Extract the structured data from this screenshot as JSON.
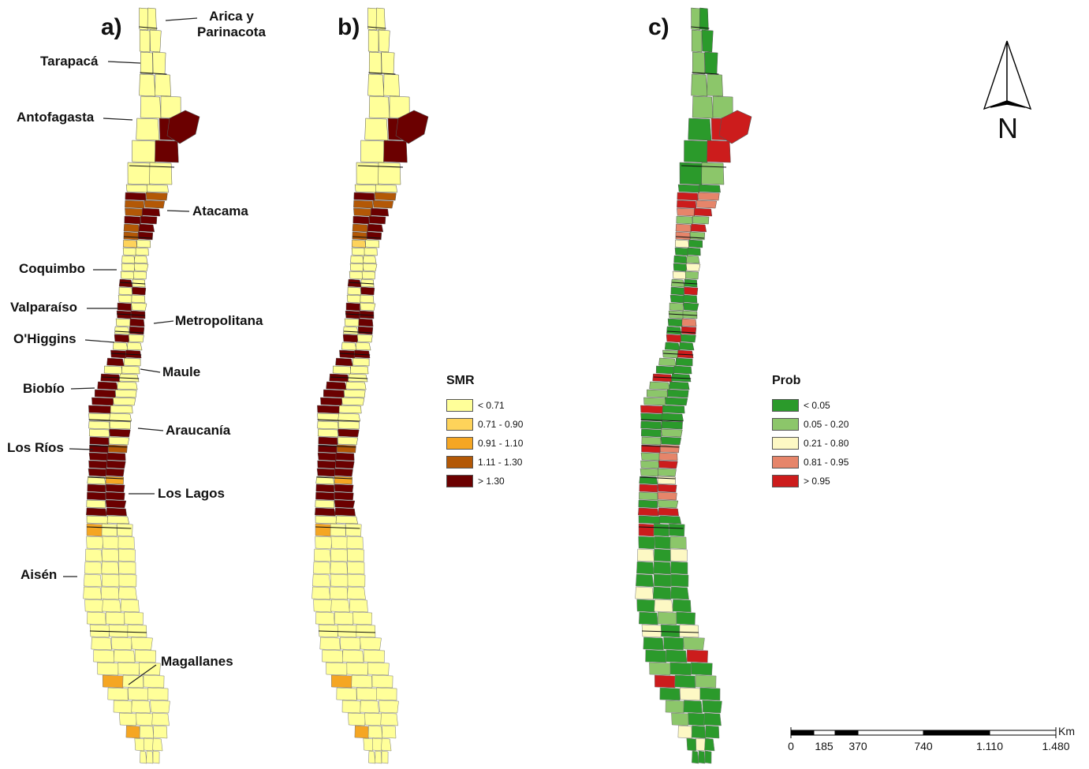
{
  "panels": [
    {
      "letter": "a)",
      "colors": [
        "#ffff99",
        "#fed35a",
        "#f5a623",
        "#b35806",
        "#6b0000"
      ]
    },
    {
      "letter": "b)",
      "colors": [
        "#ffff99",
        "#fed35a",
        "#f5a623",
        "#b35806",
        "#6b0000"
      ]
    },
    {
      "letter": "c)",
      "colors": [
        "#2b9a2b",
        "#8cc66a",
        "#fdf8c4",
        "#e6856a",
        "#cc1c1c"
      ]
    }
  ],
  "regions": [
    {
      "name": "Arica y Parinacota"
    },
    {
      "name": "Tarapacá"
    },
    {
      "name": "Antofagasta"
    },
    {
      "name": "Atacama"
    },
    {
      "name": "Coquimbo"
    },
    {
      "name": "Valparaíso"
    },
    {
      "name": "Metropolitana"
    },
    {
      "name": "O'Higgins"
    },
    {
      "name": "Maule"
    },
    {
      "name": "Biobío"
    },
    {
      "name": "Araucanía"
    },
    {
      "name": "Los Ríos"
    },
    {
      "name": "Los Lagos"
    },
    {
      "name": "Aisén"
    },
    {
      "name": "Magallanes"
    }
  ],
  "region_label_line1": "Arica y",
  "region_label_line2": "Parinacota",
  "legend_smr": {
    "title": "SMR",
    "items": [
      {
        "label": "< 0.71",
        "color": "#ffff99"
      },
      {
        "label": "0.71 - 0.90",
        "color": "#fed35a"
      },
      {
        "label": "0.91 - 1.10",
        "color": "#f5a623"
      },
      {
        "label": "1.11 - 1.30",
        "color": "#b35806"
      },
      {
        "label": "> 1.30",
        "color": "#6b0000"
      }
    ]
  },
  "legend_prob": {
    "title": "Prob",
    "items": [
      {
        "label": "< 0.05",
        "color": "#2b9a2b"
      },
      {
        "label": "0.05 - 0.20",
        "color": "#8cc66a"
      },
      {
        "label": "0.21 - 0.80",
        "color": "#fdf8c4"
      },
      {
        "label": "0.81 - 0.95",
        "color": "#e6856a"
      },
      {
        "label": "> 0.95",
        "color": "#cc1c1c"
      }
    ]
  },
  "north_arrow": {
    "label": "N",
    "icon": "north-arrow-icon"
  },
  "scale_bar": {
    "unit": "Km",
    "ticks": [
      "0",
      "185",
      "370",
      "740",
      "1.110",
      "1.480"
    ]
  }
}
